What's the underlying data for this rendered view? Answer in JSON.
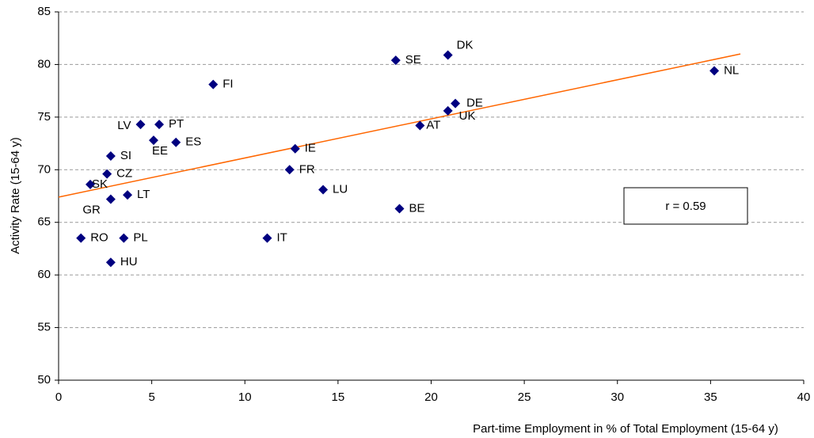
{
  "chart_data": {
    "type": "scatter",
    "xlabel": "Part-time Employment in % of Total Employment (15-64 y)",
    "ylabel": "Activity Rate (15-64 y)",
    "point_labels": [
      "SE",
      "DK",
      "NL",
      "FI",
      "DE",
      "UK",
      "AT",
      "LV",
      "PT",
      "EE",
      "ES",
      "IE",
      "SI",
      "FR",
      "CZ",
      "SK",
      "LU",
      "LT",
      "GR",
      "BE",
      "RO",
      "PL",
      "IT",
      "HU"
    ],
    "x": [
      18.1,
      20.9,
      35.2,
      8.3,
      21.3,
      20.9,
      19.4,
      4.4,
      5.4,
      5.1,
      6.3,
      12.7,
      2.8,
      12.4,
      2.6,
      1.7,
      14.2,
      3.7,
      2.8,
      18.3,
      1.2,
      3.5,
      11.2,
      2.8
    ],
    "values": [
      80.4,
      80.9,
      79.4,
      78.1,
      76.3,
      75.6,
      74.2,
      74.3,
      74.3,
      72.8,
      72.6,
      72.0,
      71.3,
      70.0,
      69.6,
      68.6,
      68.1,
      67.6,
      67.2,
      66.3,
      63.5,
      63.5,
      63.5,
      61.2
    ],
    "color": "#000080",
    "trendline": {
      "x": [
        0,
        36.6
      ],
      "values": [
        67.4,
        81.0
      ],
      "color": "#ff6600"
    },
    "annotation": "r = 0.59",
    "xlim": [
      0,
      40
    ],
    "xticks": [
      0,
      5,
      10,
      15,
      20,
      25,
      30,
      35,
      40
    ],
    "ylim": [
      50,
      85
    ],
    "yticks": [
      50,
      55,
      60,
      65,
      70,
      75,
      80,
      85
    ],
    "grid": true
  }
}
